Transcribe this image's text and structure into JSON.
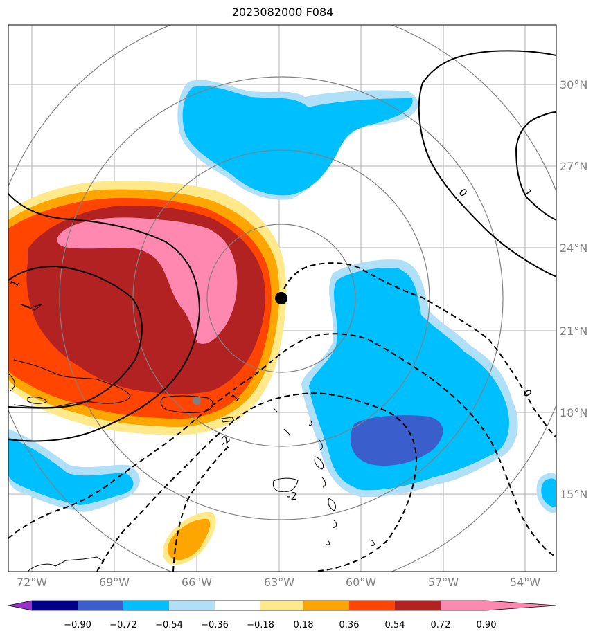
{
  "title": "2023082000 F084",
  "longitude_labels": [
    "72°W",
    "69°W",
    "66°W",
    "63°W",
    "60°W",
    "57°W",
    "54°W"
  ],
  "latitude_labels": [
    "30°N",
    "27°N",
    "24°N",
    "21°N",
    "18°N",
    "15°N"
  ],
  "contour_labels": [
    "0",
    "1",
    "1",
    "1",
    "-2",
    "-2",
    "0"
  ],
  "colorbar": {
    "ticks": [
      "−0.90",
      "−0.72",
      "−0.54",
      "−0.36",
      "−0.18",
      "0.18",
      "0.36",
      "0.54",
      "0.72",
      "0.90"
    ],
    "colors": [
      "#9932cc",
      "#00008b",
      "#3a5fcd",
      "#00bfff",
      "#b0e0f8",
      "#ffffff",
      "#ffe98a",
      "#ffa500",
      "#ff4500",
      "#b22222",
      "#ff88b0"
    ]
  },
  "markers": {
    "center_color": "#000000",
    "secondary_color": "#808080"
  }
}
